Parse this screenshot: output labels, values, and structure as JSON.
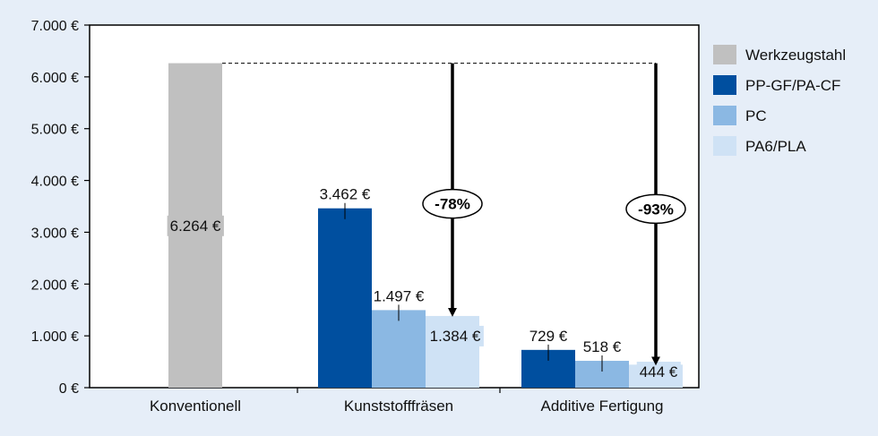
{
  "chart_data": {
    "type": "bar",
    "categories": [
      "Konventionell",
      "Kunststofffräsen",
      "Additive Fertigung"
    ],
    "series": [
      {
        "name": "Werkzeugstahl",
        "color": "#c0c0c0",
        "values": [
          6264,
          null,
          null
        ],
        "labels": [
          "6.264 €",
          null,
          null
        ]
      },
      {
        "name": "PP-GF/PA-CF",
        "color": "#004f9f",
        "values": [
          null,
          3462,
          729
        ],
        "labels": [
          null,
          "3.462 €",
          "729 €"
        ]
      },
      {
        "name": "PC",
        "color": "#8bb8e3",
        "values": [
          null,
          1497,
          518
        ],
        "labels": [
          null,
          "1.497 €",
          "518 €"
        ]
      },
      {
        "name": "PA6/PLA",
        "color": "#cfe2f5",
        "values": [
          null,
          1384,
          444
        ],
        "labels": [
          null,
          "1.384 €",
          "444 €"
        ]
      }
    ],
    "yticks": [
      "0 €",
      "1.000 €",
      "2.000 €",
      "3.000 €",
      "4.000 €",
      "5.000 €",
      "6.000 €",
      "7.000 €"
    ],
    "ylim": [
      0,
      7000
    ],
    "legend_position": "right",
    "annotations": [
      {
        "text": "-78%",
        "category": "Kunststofffräsen",
        "from": 6264,
        "to": 1384
      },
      {
        "text": "-93%",
        "category": "Additive Fertigung",
        "from": 6264,
        "to": 444
      }
    ],
    "reference_line_value": 6264
  }
}
